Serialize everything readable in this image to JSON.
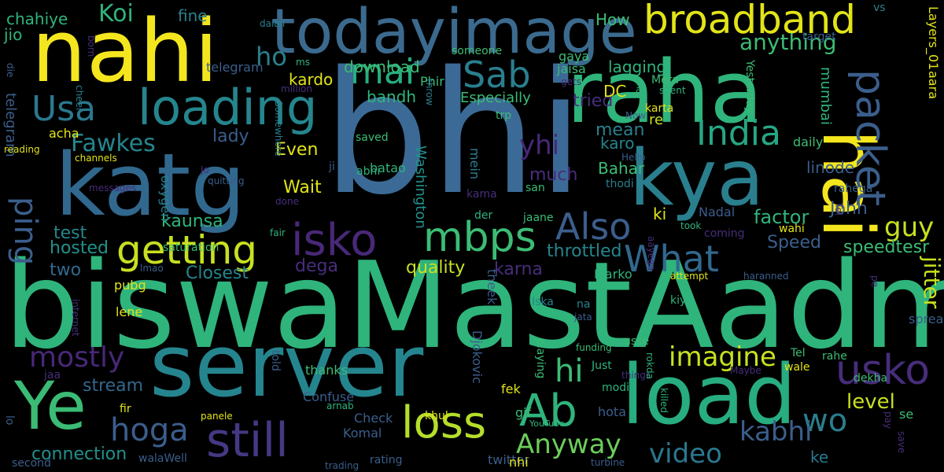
{
  "palette": {
    "background": "#000000",
    "yellow": "#f4e61e",
    "lime": "#a7db33",
    "green": "#57c766",
    "teal_green": "#27ad80",
    "teal": "#21918c",
    "blue": "#2c728e",
    "indigo": "#3b518b",
    "purple": "#472d7b",
    "dark_purple": "#440154"
  },
  "words": [
    "bhi",
    "biswaMastAadmi",
    "server",
    "load",
    "nahi",
    "raha",
    "katg",
    "kya",
    "hai",
    "todayimage",
    "broadband",
    "loading",
    "Ye",
    "packet",
    "isko",
    "mbps",
    "getting",
    "Ab",
    "loss",
    "still",
    "hoga",
    "usko",
    "Also",
    "Usa",
    "India",
    "What",
    "Sab",
    "mai",
    "ping",
    "imagine",
    "wo",
    "hi",
    "video",
    "kabhi",
    "Anyway",
    "mostly",
    "Koi",
    "ho",
    "anything",
    "guy",
    "yhi",
    "Fawkes",
    "level",
    "jitter",
    "Closest",
    "connection",
    "stream",
    "two",
    "hosted",
    "test",
    "kaunsa",
    "Wait",
    "Even",
    "factor",
    "John",
    "throttled",
    "Speed",
    "speedtesr",
    "quality",
    "dega",
    "karna",
    "pubg",
    "lene",
    "much",
    "tried",
    "mean",
    "karo",
    "Bahar",
    "linode",
    "lady",
    "kardo",
    "download",
    "bandh",
    "DC",
    "lagging",
    "How",
    "chahiye",
    "jio",
    "fine",
    "telegram",
    "Nadal",
    "Layers_01",
    "aara",
    "gaya",
    "jaisa",
    "Phir",
    "someone",
    "Mera",
    "karta",
    "Yesterday",
    "target",
    "vs",
    "mumbai",
    "re",
    "daily",
    "Especially",
    "trp",
    "saved",
    "batao",
    "abhi",
    "mein",
    "Washington",
    "ji",
    "oxygen",
    "Hello",
    "Now",
    "aa",
    "channels",
    "reading",
    "acha",
    "die",
    "telegram",
    "ms",
    "million",
    "throw",
    "gets",
    "spent",
    "cheer",
    "born",
    "Somewhere",
    "dalali",
    "Jo",
    "messages",
    "done",
    "quitting",
    "kama",
    "san",
    "thodi",
    "rahega",
    "der",
    "ki",
    "jaane",
    "fair",
    "took",
    "coming",
    "wahi",
    "saturation",
    "aayega",
    "attempt",
    "haranned",
    "Marko",
    "Iska",
    "kiya",
    "na",
    "jata",
    "spread",
    "pe",
    "funding",
    "usse",
    "Just",
    "Tel",
    "rahe",
    "dekha",
    "wale",
    "Maybe",
    "things",
    "rokda",
    "killed",
    "modi",
    "fek",
    "hota",
    "gif",
    "se",
    "ke",
    "Confuse",
    "Komal",
    "Check",
    "khul",
    "YouTube",
    "arnab",
    "panele",
    "walaWell",
    "rating",
    "twitter",
    "nhi",
    "turbine",
    "pay",
    "save",
    "trading",
    "second",
    "lo",
    "fir",
    "jaa",
    "thanks",
    "told",
    "internet",
    "lmao",
    "theek",
    "Djokovic",
    "playing",
    "fast",
    "Tel",
    "Yesterday",
    "thanks"
  ]
}
